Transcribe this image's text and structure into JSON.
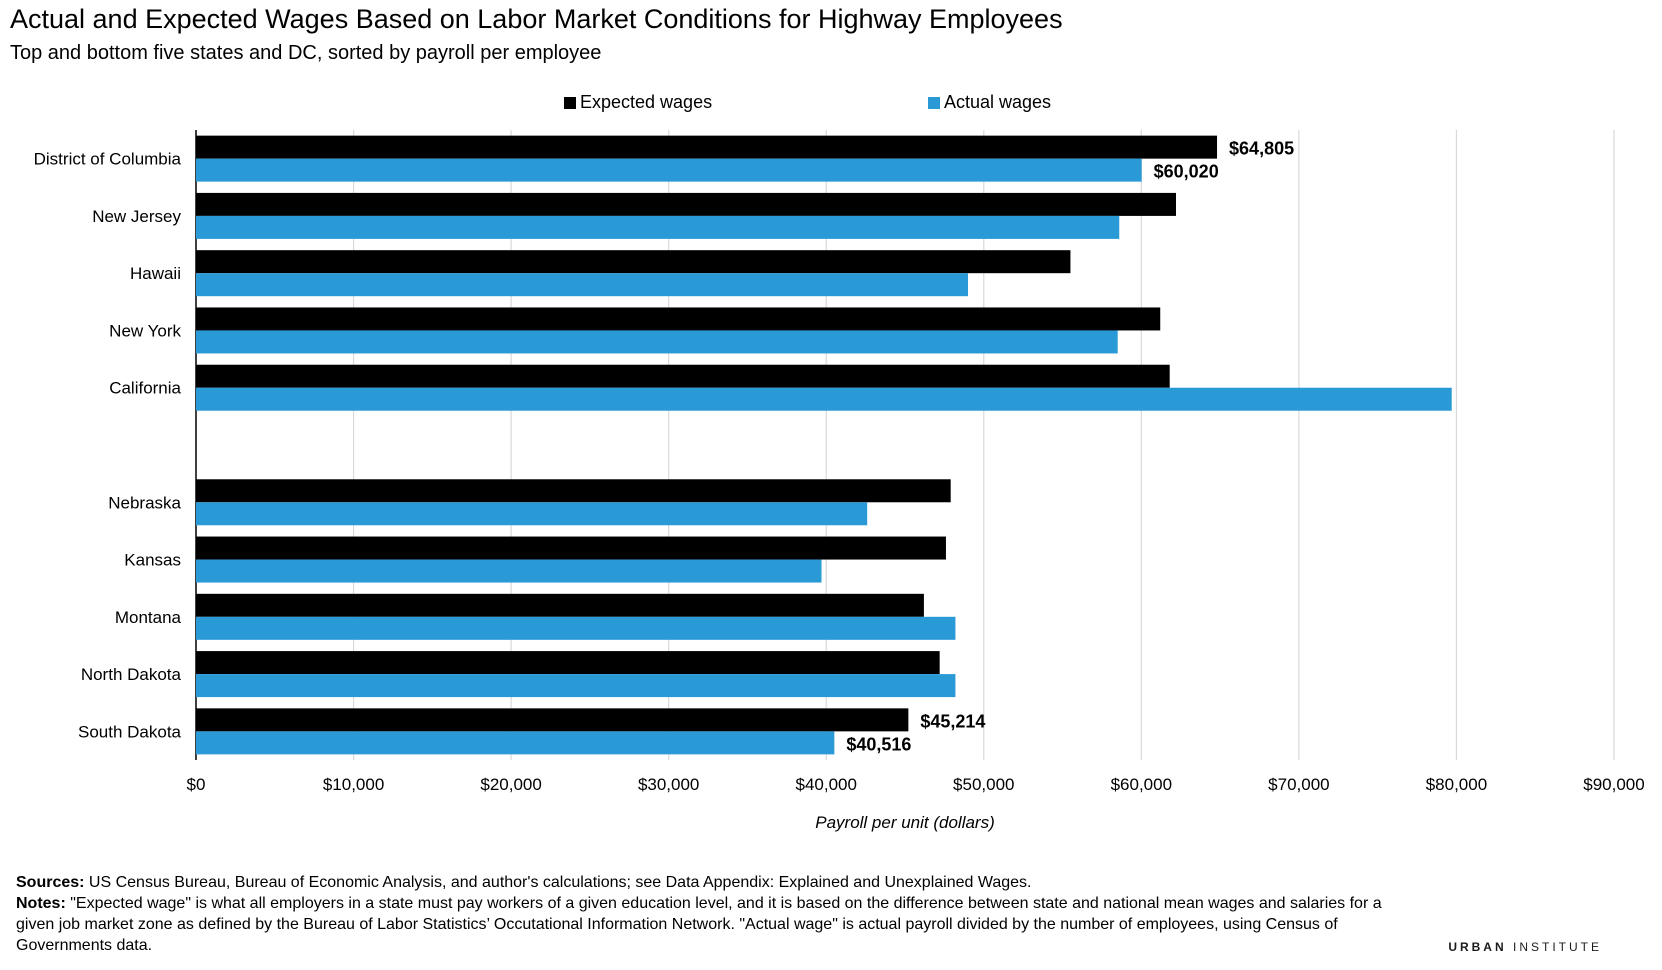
{
  "chart_data": {
    "type": "bar",
    "orientation": "horizontal",
    "title": "Actual and Expected Wages Based on Labor Market Conditions for Highway Employees",
    "subtitle": "Top and bottom five states and DC, sorted by payroll per employee",
    "xlabel": "Payroll per unit (dollars)",
    "xlim": [
      0,
      90000
    ],
    "x_ticks": [
      "$0",
      "$10,000",
      "$20,000",
      "$30,000",
      "$40,000",
      "$50,000",
      "$60,000",
      "$70,000",
      "$80,000",
      "$90,000"
    ],
    "grid": true,
    "legend_position": "top",
    "categories": [
      "District of Columbia",
      "New Jersey",
      "Hawaii",
      "New York",
      "California",
      "",
      "Nebraska",
      "Kansas",
      "Montana",
      "North Dakota",
      "South Dakota"
    ],
    "series": [
      {
        "name": "Expected wages",
        "color": "#000000",
        "values": [
          64805,
          62200,
          55500,
          61200,
          61800,
          null,
          47900,
          47600,
          46200,
          47200,
          45214
        ],
        "labels": [
          "$64,805",
          "",
          "",
          "",
          "",
          "",
          "",
          "",
          "",
          "",
          "$45,214"
        ]
      },
      {
        "name": "Actual wages",
        "color": "#2a9ad6",
        "values": [
          60020,
          58600,
          49000,
          58500,
          79700,
          null,
          42600,
          39700,
          48200,
          48200,
          40516
        ],
        "labels": [
          "$60,020",
          "",
          "",
          "",
          "",
          "",
          "",
          "",
          "",
          "",
          "$40,516"
        ]
      }
    ]
  },
  "footer": {
    "sources_label": "Sources:",
    "sources_text": " US Census Bureau, Bureau of Economic Analysis, and author's calculations; see Data Appendix: Explained and Unexplained Wages.",
    "notes_label": "Notes:",
    "notes_text": " \"Expected wage\" is what all employers in a state must pay workers of a given education level, and it is based on the difference between state and national mean wages and salaries for a given job market zone as defined by the Bureau of Labor Statistics’ Occutational Information Network. \"Actual wage\" is actual payroll divided by the number of employees, using Census of Governments data."
  },
  "brand": {
    "part1": "URBAN",
    "part2": " INSTITUTE"
  },
  "colors": {
    "expected": "#000000",
    "actual": "#2a9ad6",
    "grid": "#d9d9d9"
  }
}
